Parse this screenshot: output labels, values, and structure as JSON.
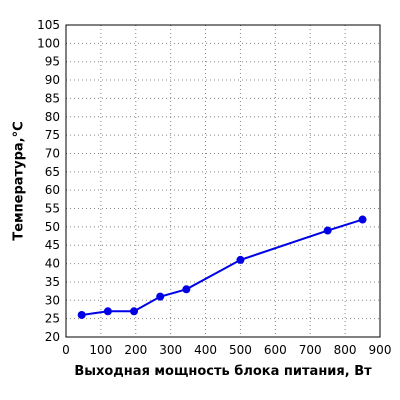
{
  "chart_data": {
    "type": "line",
    "title": "",
    "xlabel": "Выходная мощность блока питания, Вт",
    "ylabel": "Температура,°С",
    "xlim": [
      0,
      900
    ],
    "ylim": [
      20,
      105
    ],
    "xticks": [
      0,
      100,
      200,
      300,
      400,
      500,
      600,
      700,
      800,
      900
    ],
    "yticks": [
      20,
      25,
      30,
      35,
      40,
      45,
      50,
      55,
      60,
      65,
      70,
      75,
      80,
      85,
      90,
      95,
      100,
      105
    ],
    "grid": true,
    "series": [
      {
        "color": "#0000e6",
        "points": [
          {
            "x": 45,
            "y": 26
          },
          {
            "x": 120,
            "y": 27
          },
          {
            "x": 195,
            "y": 27
          },
          {
            "x": 270,
            "y": 31
          },
          {
            "x": 345,
            "y": 33
          },
          {
            "x": 500,
            "y": 41
          },
          {
            "x": 750,
            "y": 49
          },
          {
            "x": 850,
            "y": 52
          }
        ]
      }
    ]
  }
}
